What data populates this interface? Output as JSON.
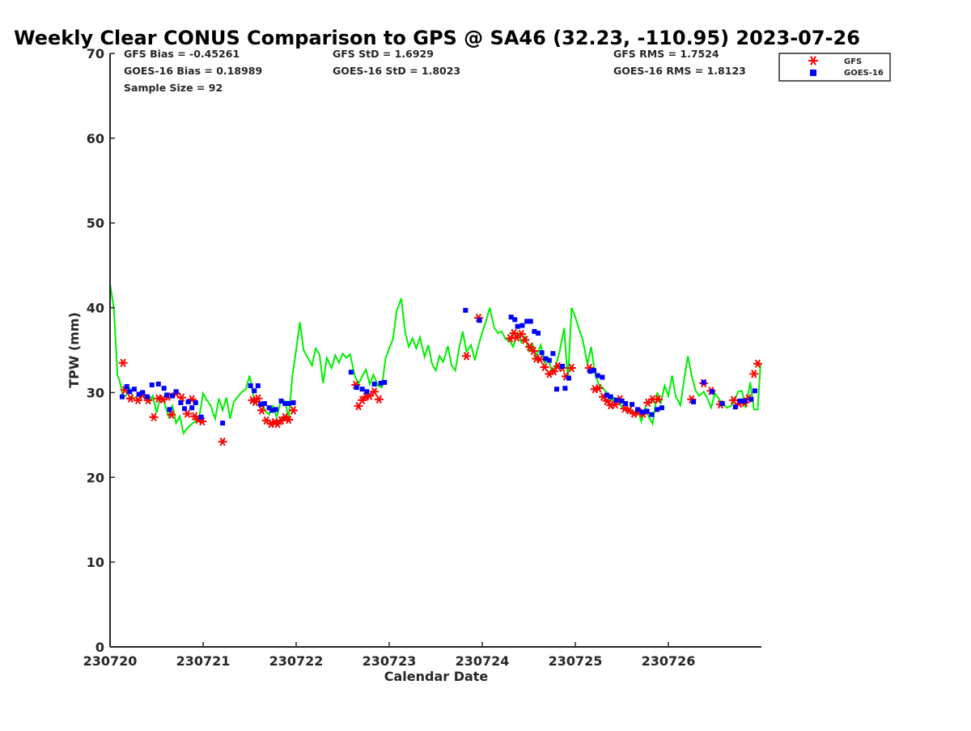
{
  "chart_data": {
    "type": "scatter",
    "title": "Weekly Clear CONUS Comparison to GPS @ SA46 (32.23, -110.95) 2023-07-26",
    "xlabel": "Calendar Date",
    "ylabel": "TPW (mm)",
    "x_unit": "day",
    "xlim": [
      "2023-07-20",
      "2023-07-27"
    ],
    "ylim": [
      0,
      70
    ],
    "yticks": [
      0,
      10,
      20,
      30,
      40,
      50,
      60,
      70
    ],
    "xticks": [
      "230720",
      "230721",
      "230722",
      "230723",
      "230724",
      "230725",
      "230726"
    ],
    "grid": false,
    "legend": {
      "placement": "top-right",
      "entries": [
        "GFS",
        "GOES-16"
      ]
    },
    "stats": {
      "gfs_bias": "GFS Bias = -0.45261",
      "goes_bias": "GOES-16 Bias = 0.18989",
      "sample_size": "Sample Size = 92",
      "gfs_std": "GFS StD = 1.6929",
      "goes_std": "GOES-16 StD = 1.8023",
      "gfs_rms": "GFS RMS = 1.7524",
      "goes_rms": "GOES-16 RMS = 1.8123"
    },
    "colors": {
      "gps": "#00ee00",
      "gfs": "#ff0000",
      "goes": "#0000ff",
      "axis": "#262626"
    },
    "series": [
      {
        "kind": "line",
        "x": [
          0.0,
          0.04,
          0.08,
          0.1,
          0.14,
          0.17,
          0.21,
          0.25,
          0.29,
          0.33,
          0.38,
          0.42,
          0.46,
          0.5,
          0.54,
          0.58,
          0.63,
          0.67,
          0.71,
          0.75,
          0.79,
          0.83,
          0.88,
          0.92,
          0.96,
          1.0,
          1.04,
          1.08,
          1.13,
          1.17,
          1.21,
          1.25,
          1.29,
          1.33,
          1.38,
          1.42,
          1.46,
          1.5,
          1.54,
          1.58,
          1.63,
          1.67,
          1.71,
          1.75,
          1.79,
          1.83,
          1.88,
          1.92,
          1.96,
          2.0,
          2.04,
          2.08,
          2.13,
          2.17,
          2.21,
          2.25,
          2.29,
          2.33,
          2.38,
          2.42,
          2.46,
          2.5,
          2.54,
          2.58,
          2.63,
          2.67,
          2.71,
          2.75,
          2.79,
          2.83,
          2.88,
          2.92,
          2.96,
          3.0,
          3.04,
          3.08,
          3.13,
          3.17,
          3.21,
          3.25,
          3.29,
          3.33,
          3.38,
          3.42,
          3.46,
          3.5,
          3.54,
          3.58,
          3.63,
          3.67,
          3.71,
          3.75,
          3.79,
          3.83,
          3.88,
          3.92,
          3.96,
          4.0,
          4.04,
          4.08,
          4.13,
          4.17,
          4.21,
          4.25,
          4.29,
          4.33,
          4.38,
          4.42,
          4.46,
          4.5,
          4.54,
          4.58,
          4.63,
          4.67,
          4.71,
          4.75,
          4.79,
          4.83,
          4.88,
          4.92,
          4.96,
          5.0,
          5.04,
          5.08,
          5.13,
          5.17,
          5.21,
          5.25,
          5.29,
          5.33,
          5.38,
          5.42,
          5.46,
          5.5,
          5.54,
          5.58,
          5.63,
          5.67,
          5.71,
          5.75,
          5.79,
          5.83,
          5.88,
          5.92,
          5.96,
          6.0,
          6.04,
          6.08,
          6.13,
          6.17,
          6.21,
          6.25,
          6.29,
          6.33,
          6.38,
          6.42,
          6.46,
          6.5,
          6.54,
          6.58,
          6.63,
          6.67,
          6.71,
          6.75,
          6.79,
          6.83,
          6.88,
          6.92,
          6.96,
          6.99
        ],
        "y": [
          42.8,
          40.0,
          32.0,
          31.5,
          29.5,
          29.6,
          30.5,
          29.3,
          29.5,
          30.1,
          29.4,
          28.8,
          29.6,
          27.6,
          29.5,
          28.9,
          27.2,
          28.4,
          26.4,
          27.2,
          25.2,
          25.8,
          26.3,
          26.6,
          27.2,
          29.9,
          29.1,
          28.5,
          26.9,
          29.3,
          27.9,
          29.4,
          26.9,
          28.9,
          29.6,
          30.1,
          30.4,
          32.0,
          29.6,
          28.5,
          28.8,
          27.8,
          27.4,
          28.4,
          27.1,
          28.8,
          29.0,
          27.0,
          32.0,
          35.0,
          38.3,
          35.0,
          34.0,
          33.2,
          35.2,
          34.5,
          31.1,
          34.1,
          32.9,
          34.4,
          33.5,
          34.6,
          34.1,
          34.5,
          32.0,
          31.0,
          31.9,
          32.7,
          31.0,
          32.1,
          30.8,
          30.6,
          34.0,
          35.2,
          36.3,
          39.6,
          41.1,
          37.2,
          35.4,
          36.4,
          35.2,
          36.5,
          34.2,
          35.6,
          33.4,
          32.6,
          34.3,
          33.6,
          35.5,
          33.2,
          32.6,
          35.2,
          37.2,
          34.8,
          35.6,
          33.8,
          35.6,
          37.1,
          38.4,
          40.0,
          37.6,
          37.0,
          37.2,
          36.3,
          36.2,
          35.4,
          37.1,
          35.9,
          36.6,
          34.9,
          35.7,
          34.3,
          35.6,
          33.5,
          34.1,
          32.3,
          33.2,
          34.8,
          37.6,
          31.4,
          40.0,
          38.9,
          37.5,
          36.2,
          33.3,
          35.4,
          32.3,
          31.0,
          30.6,
          30.1,
          29.0,
          29.4,
          29.1,
          28.3,
          28.6,
          27.9,
          27.6,
          28.0,
          26.6,
          28.2,
          27.1,
          26.3,
          30.0,
          28.8,
          30.8,
          29.6,
          32.0,
          29.5,
          28.5,
          31.6,
          34.3,
          32.0,
          30.3,
          29.6,
          30.1,
          29.3,
          28.2,
          29.9,
          29.3,
          28.7,
          28.2,
          28.4,
          29.0,
          30.1,
          30.2,
          28.2,
          31.2,
          28.0,
          28.0,
          33.3
        ]
      },
      {
        "name": "GFS",
        "kind": "asterisk",
        "x": [
          0.14,
          0.16,
          0.22,
          0.3,
          0.35,
          0.41,
          0.47,
          0.52,
          0.57,
          0.62,
          0.66,
          0.71,
          0.77,
          0.83,
          0.88,
          0.91,
          0.95,
          0.99,
          1.21,
          1.53,
          1.56,
          1.59,
          1.63,
          1.68,
          1.73,
          1.77,
          1.8,
          1.84,
          1.88,
          1.92,
          1.97,
          2.64,
          2.67,
          2.71,
          2.75,
          2.79,
          2.84,
          2.89,
          3.83,
          3.96,
          4.3,
          4.34,
          4.37,
          4.42,
          4.46,
          4.51,
          4.55,
          4.58,
          4.62,
          4.67,
          4.72,
          4.77,
          4.81,
          4.86,
          4.9,
          4.96,
          5.15,
          5.21,
          5.25,
          5.3,
          5.34,
          5.38,
          5.43,
          5.48,
          5.53,
          5.58,
          5.63,
          5.68,
          5.73,
          5.78,
          5.83,
          5.89,
          6.25,
          6.38,
          6.46,
          6.56,
          6.7,
          6.76,
          6.82,
          6.86,
          6.92,
          6.96
        ],
        "y": [
          33.5,
          30.3,
          29.3,
          29.1,
          29.7,
          29.1,
          27.1,
          29.3,
          29.2,
          29.5,
          27.4,
          29.9,
          29.4,
          27.5,
          29.2,
          27.2,
          26.8,
          26.6,
          24.2,
          29.1,
          28.9,
          29.3,
          27.9,
          26.7,
          26.3,
          26.5,
          26.3,
          26.7,
          27.1,
          26.8,
          27.9,
          30.9,
          28.4,
          29.1,
          29.5,
          29.6,
          30.1,
          29.2,
          34.3,
          38.8,
          36.4,
          37.0,
          36.5,
          36.9,
          36.2,
          35.4,
          34.9,
          34.0,
          33.9,
          33.0,
          32.2,
          32.5,
          33.1,
          32.9,
          31.9,
          32.9,
          32.9,
          30.4,
          30.5,
          29.5,
          29.0,
          28.5,
          28.6,
          29.2,
          28.1,
          27.9,
          27.5,
          27.7,
          27.5,
          28.8,
          29.2,
          29.2,
          29.2,
          31.1,
          30.2,
          28.6,
          29.1,
          28.7,
          28.8,
          29.3,
          32.2,
          33.4
        ]
      },
      {
        "name": "GOES-16",
        "kind": "square",
        "x": [
          0.13,
          0.18,
          0.21,
          0.26,
          0.31,
          0.35,
          0.4,
          0.45,
          0.52,
          0.58,
          0.61,
          0.64,
          0.67,
          0.71,
          0.76,
          0.8,
          0.84,
          0.88,
          0.92,
          0.98,
          1.21,
          1.51,
          1.55,
          1.59,
          1.62,
          1.66,
          1.71,
          1.74,
          1.78,
          1.84,
          1.88,
          1.92,
          1.97,
          2.59,
          2.65,
          2.71,
          2.76,
          2.84,
          2.91,
          2.95,
          3.82,
          3.97,
          4.31,
          4.35,
          4.38,
          4.43,
          4.48,
          4.52,
          4.56,
          4.6,
          4.64,
          4.68,
          4.72,
          4.76,
          4.8,
          4.86,
          4.89,
          4.93,
          5.16,
          5.2,
          5.24,
          5.29,
          5.34,
          5.38,
          5.44,
          5.5,
          5.54,
          5.61,
          5.67,
          5.72,
          5.77,
          5.82,
          5.88,
          5.93,
          6.27,
          6.38,
          6.47,
          6.58,
          6.72,
          6.77,
          6.82,
          6.89,
          6.93
        ],
        "y": [
          29.5,
          30.7,
          30.1,
          30.4,
          29.8,
          30.0,
          29.5,
          30.9,
          31.0,
          30.5,
          29.7,
          28.0,
          29.6,
          30.1,
          28.8,
          28.1,
          28.9,
          28.2,
          28.8,
          27.1,
          26.4,
          30.8,
          30.2,
          30.8,
          28.6,
          28.7,
          28.2,
          27.9,
          28.0,
          29.0,
          28.7,
          28.7,
          28.8,
          32.4,
          30.6,
          30.4,
          30.1,
          31.0,
          31.1,
          31.2,
          39.7,
          38.5,
          38.9,
          38.6,
          37.8,
          37.9,
          38.4,
          38.4,
          37.2,
          37.0,
          34.7,
          34.0,
          33.8,
          34.6,
          30.4,
          33.1,
          30.5,
          31.7,
          32.5,
          32.6,
          32.0,
          31.8,
          29.7,
          29.5,
          29.1,
          29.0,
          28.7,
          28.6,
          28.0,
          27.7,
          27.8,
          27.4,
          28.0,
          28.2,
          28.9,
          31.2,
          30.1,
          28.7,
          28.3,
          29.0,
          29.0,
          29.2,
          30.2
        ]
      }
    ]
  }
}
